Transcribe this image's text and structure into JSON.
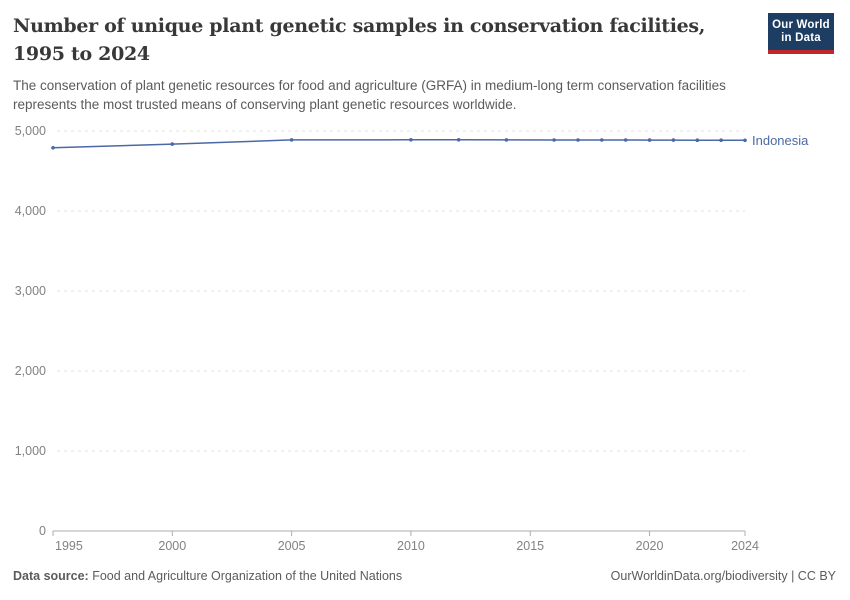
{
  "header": {
    "title_line1": "Number of unique plant genetic samples in conservation facilities,",
    "title_line2": "1995 to 2024",
    "subtitle_line1": "The conservation of plant genetic resources for food and agriculture (GRFA) in medium-long term conservation facilities",
    "subtitle_line2": "represents the most trusted means of conserving plant genetic resources worldwide."
  },
  "logo": {
    "line1": "Our World",
    "line2": "in Data",
    "bg_color": "#1d3d63",
    "accent_color": "#c0272d"
  },
  "chart_data": {
    "type": "line",
    "title": "Number of unique plant genetic samples in conservation facilities, 1995 to 2024",
    "xlabel": "",
    "ylabel": "",
    "x": [
      1995,
      2000,
      2005,
      2010,
      2012,
      2014,
      2016,
      2017,
      2018,
      2019,
      2020,
      2021,
      2022,
      2023,
      2024
    ],
    "series": [
      {
        "name": "Indonesia",
        "color": "#4a69a5",
        "values": [
          4790,
          4836,
          4889,
          4890,
          4890,
          4889,
          4888,
          4888,
          4887,
          4887,
          4886,
          4886,
          4885,
          4885,
          4884
        ]
      }
    ],
    "xlim": [
      1995,
      2024
    ],
    "ylim": [
      0,
      5000
    ],
    "x_ticks": [
      1995,
      2000,
      2005,
      2010,
      2015,
      2020,
      2024
    ],
    "x_tick_labels": [
      "1995",
      "2000",
      "2005",
      "2010",
      "2015",
      "2020",
      "2024"
    ],
    "y_ticks": [
      0,
      1000,
      2000,
      3000,
      4000,
      5000
    ],
    "y_tick_labels": [
      "0",
      "1,000",
      "2,000",
      "3,000",
      "4,000",
      "5,000"
    ],
    "grid": "horizontal-dashed",
    "legend_position": "end-of-line-label",
    "marker": "circle"
  },
  "footer": {
    "data_source_label": "Data source:",
    "data_source_value": " Food and Agriculture Organization of the United Nations",
    "link_text": "OurWorldinData.org/biodiversity | CC BY"
  }
}
